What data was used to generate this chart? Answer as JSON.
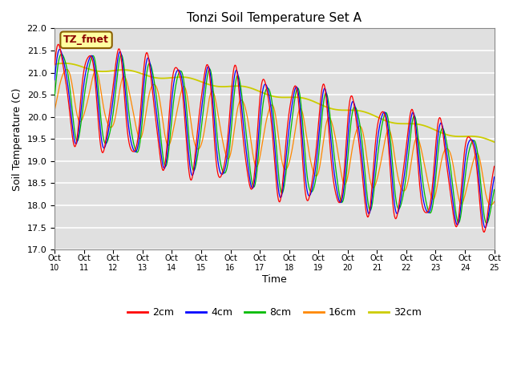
{
  "title": "Tonzi Soil Temperature Set A",
  "xlabel": "Time",
  "ylabel": "Soil Temperature (C)",
  "ylim": [
    17.0,
    22.0
  ],
  "yticks": [
    17.0,
    17.5,
    18.0,
    18.5,
    19.0,
    19.5,
    20.0,
    20.5,
    21.0,
    21.5,
    22.0
  ],
  "x_labels": [
    "Oct 10",
    "Oct 11",
    "Oct 12",
    "Oct 13",
    "Oct 14",
    "Oct 15",
    "Oct 16",
    "Oct 17",
    "Oct 18",
    "Oct 19",
    "Oct 20",
    "Oct 21",
    "Oct 22",
    "Oct 23",
    "Oct 24",
    "Oct 25"
  ],
  "colors": {
    "2cm": "#FF0000",
    "4cm": "#0000FF",
    "8cm": "#00BB00",
    "16cm": "#FF8800",
    "32cm": "#CCCC00"
  },
  "legend_labels": [
    "2cm",
    "4cm",
    "8cm",
    "16cm",
    "32cm"
  ],
  "annotation_text": "TZ_fmet",
  "bg_color": "#E0E0E0",
  "grid_color": "#FFFFFF",
  "fig_color": "#FFFFFF",
  "n_points": 720,
  "title_fontsize": 11,
  "label_fontsize": 9,
  "tick_fontsize": 8
}
